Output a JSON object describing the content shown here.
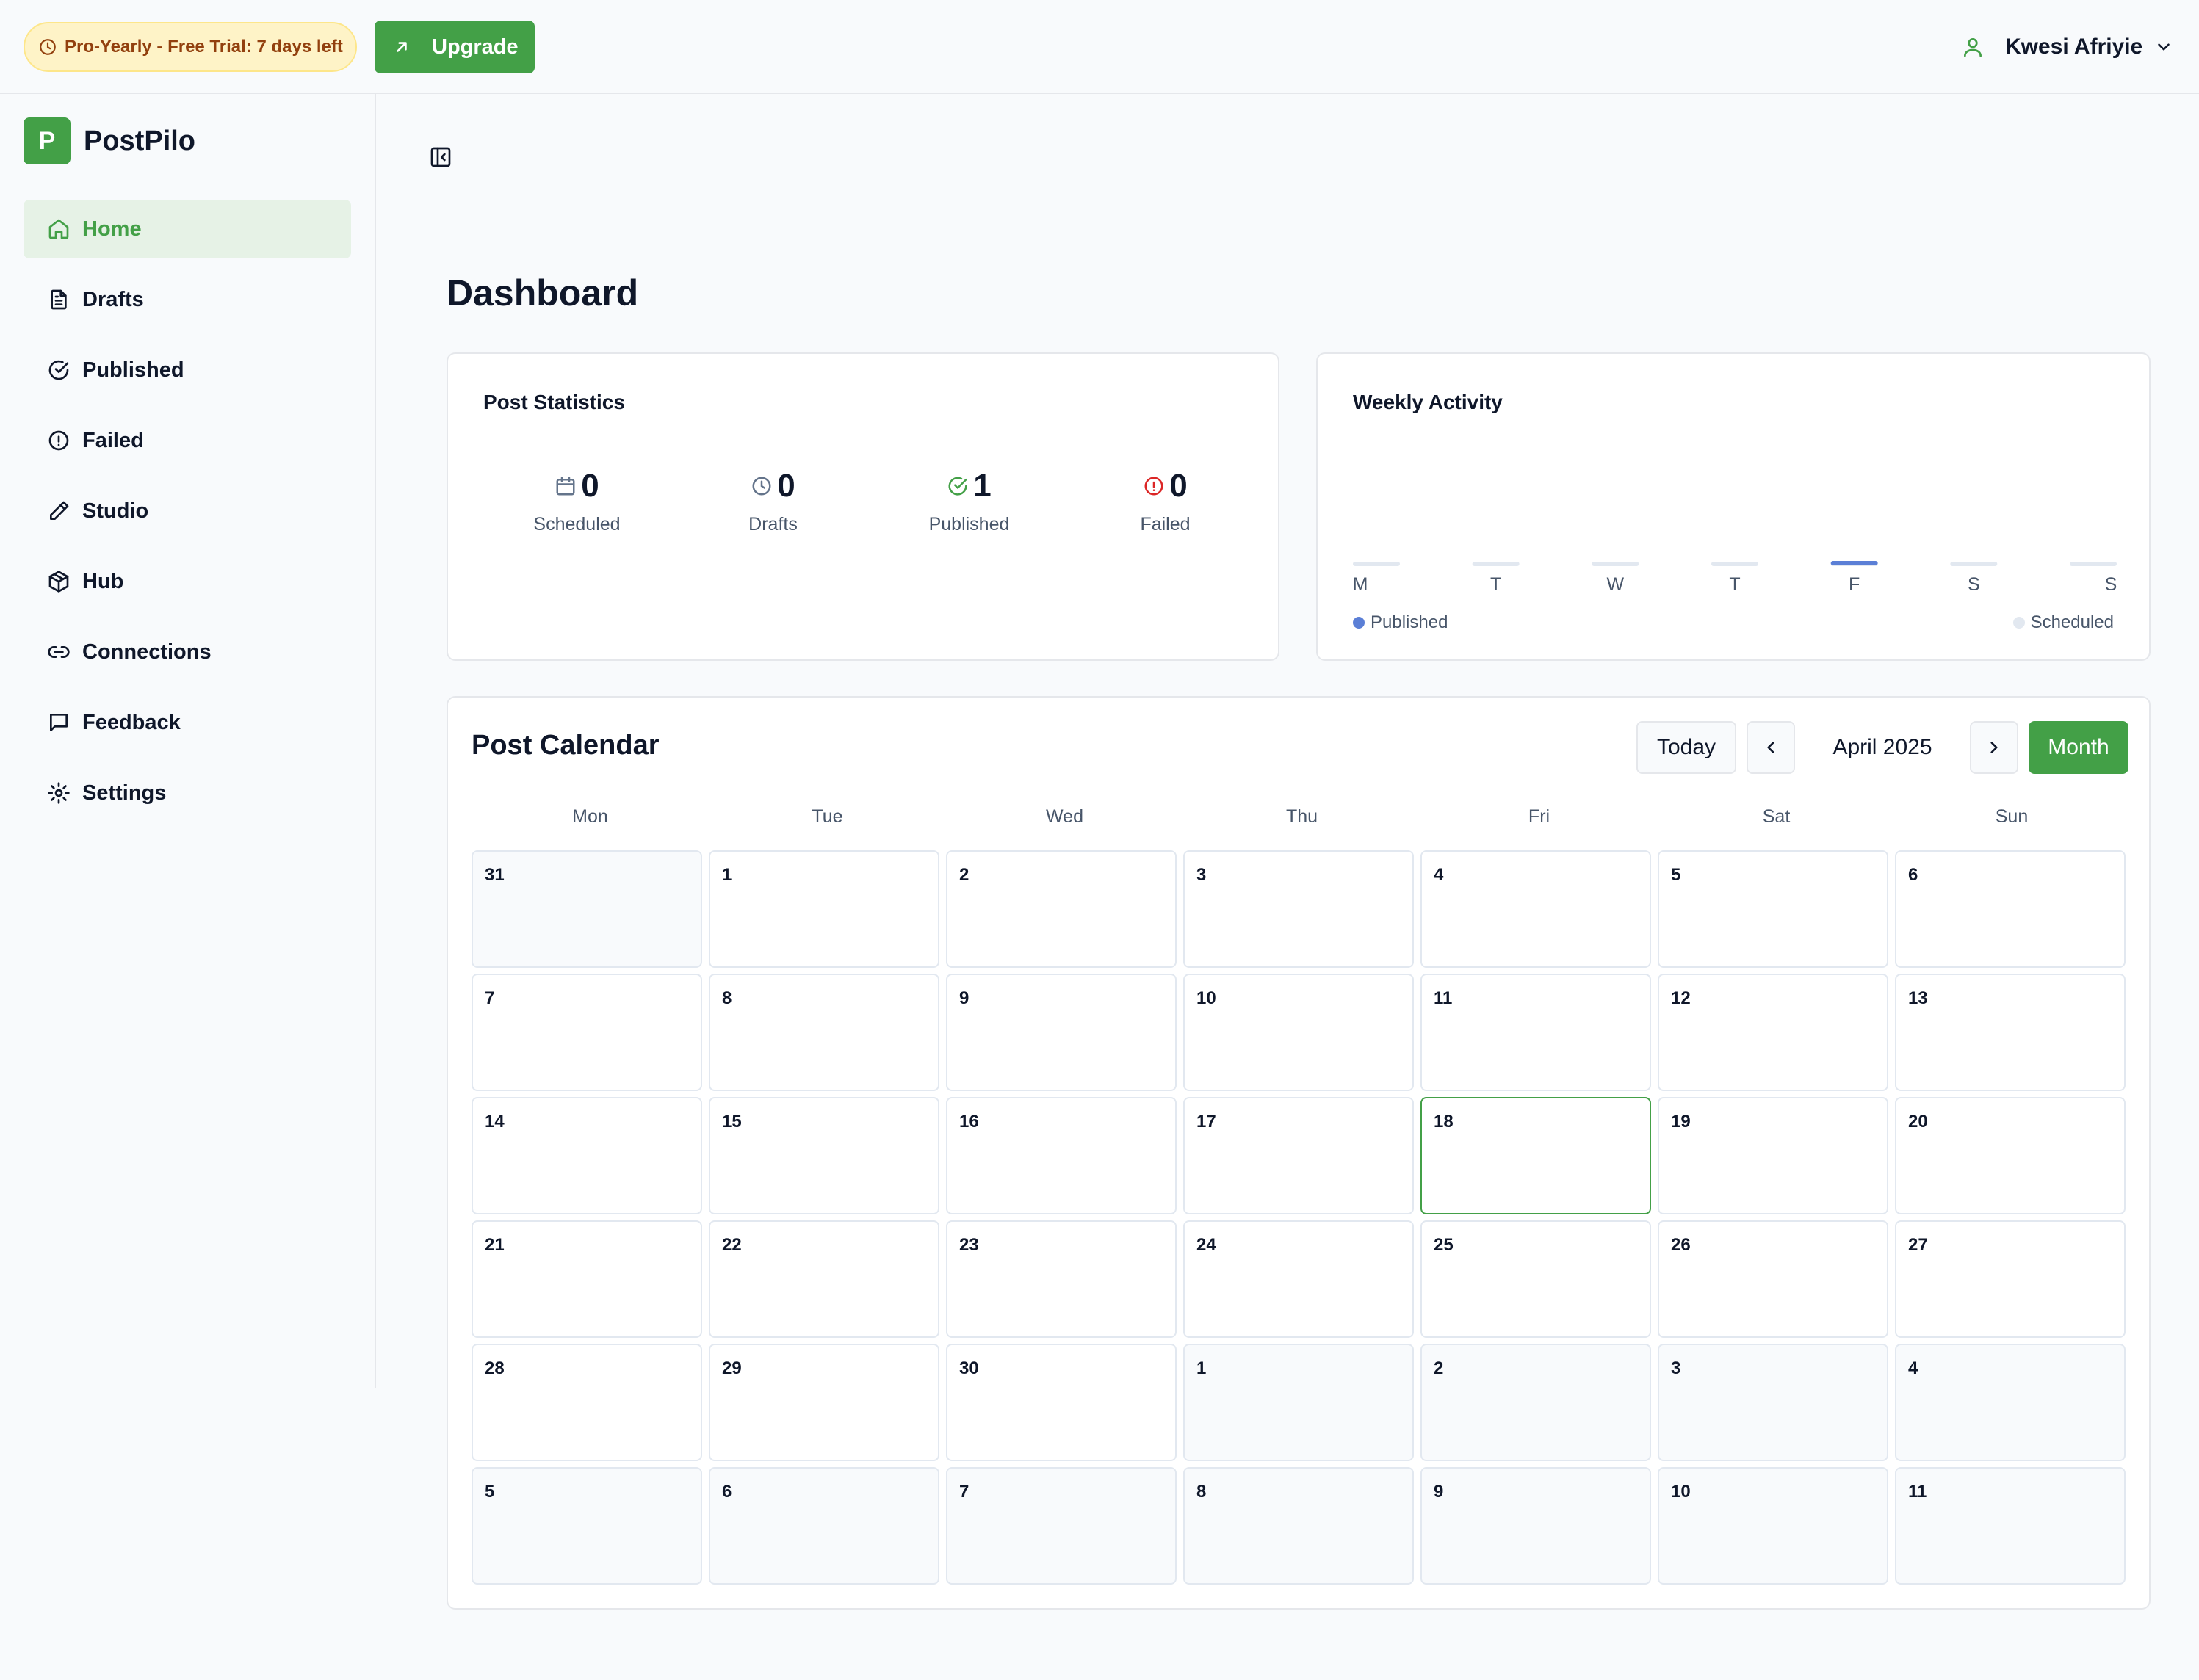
{
  "topbar": {
    "trial_badge": "Pro-Yearly - Free Trial: 7 days left",
    "upgrade_label": "Upgrade",
    "user_name": "Kwesi Afriyie"
  },
  "sidebar": {
    "brand_letter": "P",
    "brand_name": "PostPilo",
    "items": [
      {
        "label": "Home",
        "icon": "home-icon",
        "active": true
      },
      {
        "label": "Drafts",
        "icon": "file-icon"
      },
      {
        "label": "Published",
        "icon": "check-circle-icon"
      },
      {
        "label": "Failed",
        "icon": "alert-circle-icon"
      },
      {
        "label": "Studio",
        "icon": "pencil-icon"
      },
      {
        "label": "Hub",
        "icon": "box-icon"
      },
      {
        "label": "Connections",
        "icon": "link-icon"
      },
      {
        "label": "Feedback",
        "icon": "message-square-icon"
      },
      {
        "label": "Settings",
        "icon": "gear-icon"
      }
    ]
  },
  "main": {
    "page_title": "Dashboard",
    "stats": {
      "title": "Post Statistics",
      "items": [
        {
          "value": "0",
          "label": "Scheduled",
          "icon": "calendar-icon",
          "color": "#64748b"
        },
        {
          "value": "0",
          "label": "Drafts",
          "icon": "clock-icon",
          "color": "#64748b"
        },
        {
          "value": "1",
          "label": "Published",
          "icon": "check-circle-icon",
          "color": "#43a047"
        },
        {
          "value": "0",
          "label": "Failed",
          "icon": "alert-circle-icon",
          "color": "#dc2626"
        }
      ]
    },
    "weekly": {
      "title": "Weekly Activity",
      "legend_published": "Published",
      "legend_scheduled": "Scheduled"
    },
    "calendar": {
      "title": "Post Calendar",
      "today_label": "Today",
      "month_label": "April 2025",
      "view_label": "Month",
      "weekdays": [
        "Mon",
        "Tue",
        "Wed",
        "Thu",
        "Fri",
        "Sat",
        "Sun"
      ],
      "days": [
        {
          "d": "31",
          "other": true
        },
        {
          "d": "1"
        },
        {
          "d": "2"
        },
        {
          "d": "3"
        },
        {
          "d": "4"
        },
        {
          "d": "5"
        },
        {
          "d": "6"
        },
        {
          "d": "7"
        },
        {
          "d": "8"
        },
        {
          "d": "9"
        },
        {
          "d": "10"
        },
        {
          "d": "11"
        },
        {
          "d": "12"
        },
        {
          "d": "13"
        },
        {
          "d": "14"
        },
        {
          "d": "15"
        },
        {
          "d": "16"
        },
        {
          "d": "17"
        },
        {
          "d": "18",
          "today": true
        },
        {
          "d": "19"
        },
        {
          "d": "20"
        },
        {
          "d": "21"
        },
        {
          "d": "22"
        },
        {
          "d": "23"
        },
        {
          "d": "24"
        },
        {
          "d": "25"
        },
        {
          "d": "26"
        },
        {
          "d": "27"
        },
        {
          "d": "28"
        },
        {
          "d": "29"
        },
        {
          "d": "30"
        },
        {
          "d": "1",
          "other": true
        },
        {
          "d": "2",
          "other": true
        },
        {
          "d": "3",
          "other": true
        },
        {
          "d": "4",
          "other": true
        },
        {
          "d": "5",
          "other": true
        },
        {
          "d": "6",
          "other": true
        },
        {
          "d": "7",
          "other": true
        },
        {
          "d": "8",
          "other": true
        },
        {
          "d": "9",
          "other": true
        },
        {
          "d": "10",
          "other": true
        },
        {
          "d": "11",
          "other": true
        }
      ]
    }
  },
  "chart_data": {
    "type": "bar",
    "categories": [
      "M",
      "T",
      "W",
      "T",
      "F",
      "S",
      "S"
    ],
    "series": [
      {
        "name": "Published",
        "values": [
          0,
          0,
          0,
          0,
          1,
          0,
          0
        ]
      },
      {
        "name": "Scheduled",
        "values": [
          0,
          0,
          0,
          0,
          0,
          0,
          0
        ]
      }
    ],
    "colors": {
      "Published": "#5b7fd6",
      "Scheduled": "#e2e8f0"
    },
    "legend": "bottom"
  },
  "colors": {
    "accent": "#43a047",
    "active_nav_bg": "#e6f2e6",
    "failed": "#dc2626",
    "trial_bg": "#fef3c7"
  }
}
